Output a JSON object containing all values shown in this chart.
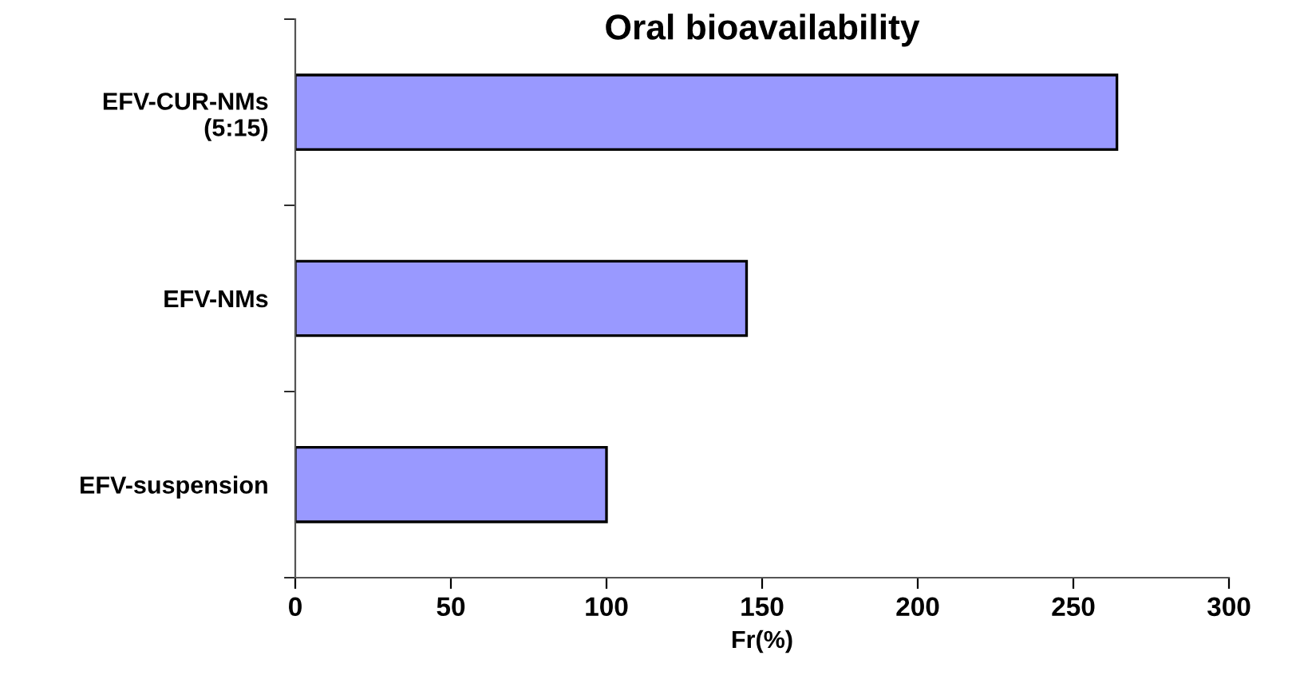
{
  "chart_data": {
    "type": "bar",
    "orientation": "horizontal",
    "title": "Oral bioavailability",
    "xlabel": "Fr(%)",
    "categories": [
      "EFV-CUR-NMs\n(5:15)",
      "EFV-NMs",
      "EFV-suspension"
    ],
    "values": [
      264,
      145,
      100
    ],
    "color": "#9999ff",
    "xlim": [
      0,
      300
    ],
    "xticks": [
      0,
      50,
      100,
      150,
      200,
      250,
      300
    ],
    "grid": false,
    "legend": false
  }
}
